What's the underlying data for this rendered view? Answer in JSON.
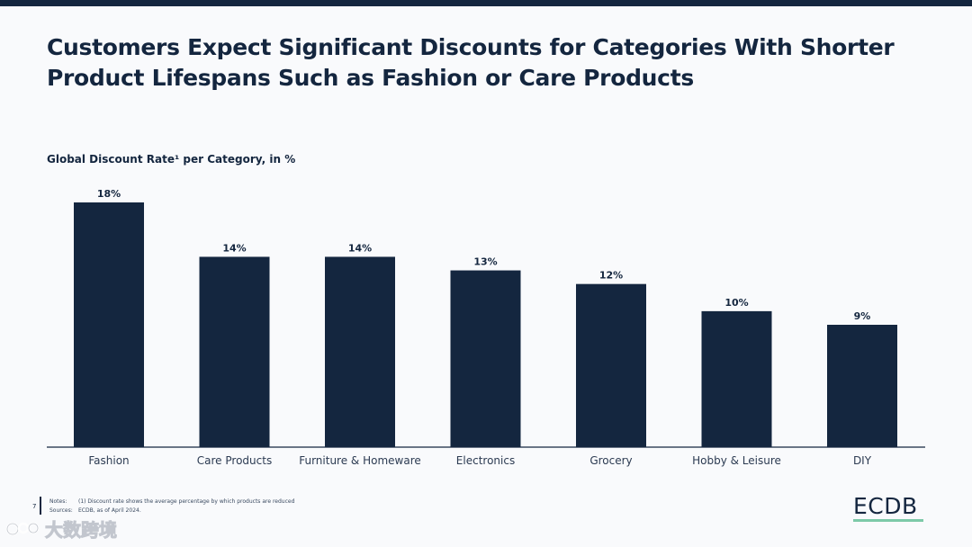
{
  "slide": {
    "title": "Customers Expect Significant Discounts for Categories With Shorter Product Lifespans Such as Fashion or Care Products",
    "page_number": "7",
    "notes_label": "Notes:",
    "notes_text": "(1) Discount rate shows the average percentage by which products are reduced",
    "sources_label": "Sources:",
    "sources_text": "ECDB, as of April 2024.",
    "logo_text": "ECDB",
    "watermark_text": "大数跨境"
  },
  "colors": {
    "bar": "#14263f",
    "accent": "#7dc9a8"
  },
  "chart_data": {
    "type": "bar",
    "title": "Global Discount Rate¹ per Category, in %",
    "categories": [
      "Fashion",
      "Care Products",
      "Furniture & Homeware",
      "Electronics",
      "Grocery",
      "Hobby & Leisure",
      "DIY"
    ],
    "values": [
      18,
      14,
      14,
      13,
      12,
      10,
      9
    ],
    "value_labels": [
      "18%",
      "14%",
      "14%",
      "13%",
      "12%",
      "10%",
      "9%"
    ],
    "xlabel": "",
    "ylabel": "",
    "ylim": [
      0,
      18
    ],
    "grid": false,
    "legend": "none"
  }
}
